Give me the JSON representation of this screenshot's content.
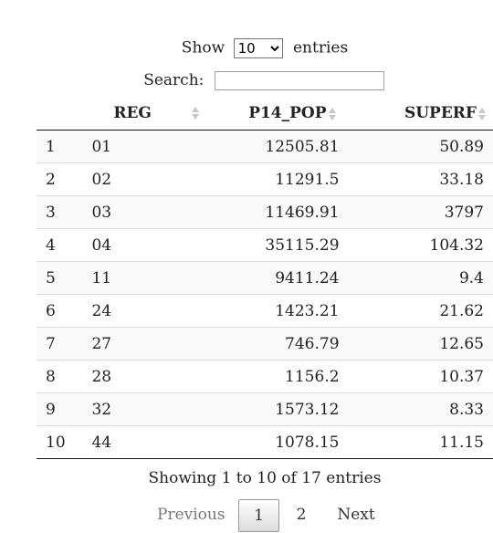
{
  "length_menu": {
    "prefix": "Show",
    "selected": "10",
    "suffix": "entries"
  },
  "search": {
    "label": "Search:",
    "value": ""
  },
  "table": {
    "headers": {
      "index": "",
      "reg": "REG",
      "p14_pop": "P14_POP",
      "superf": "SUPERF"
    },
    "rows": [
      {
        "idx": "1",
        "reg": "01",
        "p14_pop": "12505.81",
        "superf": "50.89"
      },
      {
        "idx": "2",
        "reg": "02",
        "p14_pop": "11291.5",
        "superf": "33.18"
      },
      {
        "idx": "3",
        "reg": "03",
        "p14_pop": "11469.91",
        "superf": "3797"
      },
      {
        "idx": "4",
        "reg": "04",
        "p14_pop": "35115.29",
        "superf": "104.32"
      },
      {
        "idx": "5",
        "reg": "11",
        "p14_pop": "9411.24",
        "superf": "9.4"
      },
      {
        "idx": "6",
        "reg": "24",
        "p14_pop": "1423.21",
        "superf": "21.62"
      },
      {
        "idx": "7",
        "reg": "27",
        "p14_pop": "746.79",
        "superf": "12.65"
      },
      {
        "idx": "8",
        "reg": "28",
        "p14_pop": "1156.2",
        "superf": "10.37"
      },
      {
        "idx": "9",
        "reg": "32",
        "p14_pop": "1573.12",
        "superf": "8.33"
      },
      {
        "idx": "10",
        "reg": "44",
        "p14_pop": "1078.15",
        "superf": "11.15"
      }
    ]
  },
  "info": "Showing 1 to 10 of 17 entries",
  "pagination": {
    "previous": "Previous",
    "pages": [
      "1",
      "2"
    ],
    "next": "Next"
  }
}
